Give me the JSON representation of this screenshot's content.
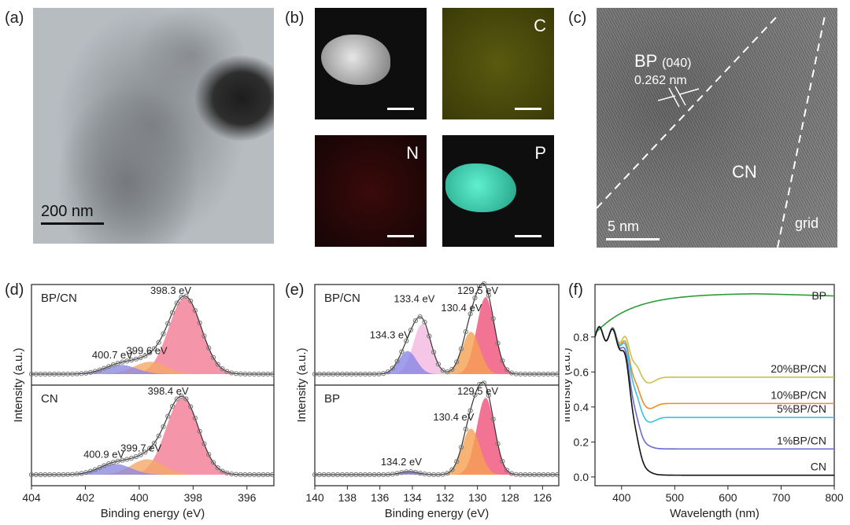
{
  "panels": {
    "a": {
      "label": "(a)",
      "scale": "200 nm"
    },
    "b": {
      "label": "(b)",
      "maps": [
        "C",
        "N",
        "P"
      ]
    },
    "c": {
      "label": "(c)",
      "bp_label": "BP",
      "plane": "(040)",
      "spacing": "0.262 nm",
      "cn": "CN",
      "grid": "grid",
      "scale": "5 nm"
    },
    "d": {
      "label": "(d)"
    },
    "e": {
      "label": "(e)"
    },
    "f": {
      "label": "(f)"
    }
  },
  "chart_data": [
    {
      "id": "d",
      "type": "line",
      "xlabel": "Binding energy (eV)",
      "ylabel": "Intensity (a.u.)",
      "xlim": [
        404,
        395
      ],
      "xticks": [
        404,
        402,
        400,
        398,
        396
      ],
      "subplots": [
        {
          "name": "BP/CN",
          "peaks": [
            {
              "label": "398.3 eV",
              "center": 398.3,
              "height": 1.0,
              "color": "#f27a95"
            },
            {
              "label": "399.6 eV",
              "center": 399.6,
              "height": 0.16,
              "color": "#f5a968"
            },
            {
              "label": "400.7 eV",
              "center": 400.7,
              "height": 0.12,
              "color": "#8e8ae0"
            }
          ]
        },
        {
          "name": "CN",
          "peaks": [
            {
              "label": "398.4 eV",
              "center": 398.4,
              "height": 1.0,
              "color": "#f27a95"
            },
            {
              "label": "399.7 eV",
              "center": 399.7,
              "height": 0.2,
              "color": "#f5a968"
            },
            {
              "label": "400.9 eV",
              "center": 400.9,
              "height": 0.14,
              "color": "#8e8ae0"
            }
          ]
        }
      ]
    },
    {
      "id": "e",
      "type": "line",
      "xlabel": "Binding energy (eV)",
      "ylabel": "Intensity (a.u.)",
      "xlim": [
        140,
        125
      ],
      "xticks": [
        140,
        138,
        136,
        134,
        132,
        130,
        128,
        126
      ],
      "subplots": [
        {
          "name": "BP/CN",
          "peaks": [
            {
              "label": "129.5 eV",
              "center": 129.5,
              "height": 1.0,
              "color": "#f0507a"
            },
            {
              "label": "130.4 eV",
              "center": 130.4,
              "height": 0.55,
              "color": "#f5a050"
            },
            {
              "label": "133.4 eV",
              "center": 133.4,
              "height": 0.65,
              "color": "#f3b8e0"
            },
            {
              "label": "134.3 eV",
              "center": 134.3,
              "height": 0.3,
              "color": "#8a86e6"
            }
          ]
        },
        {
          "name": "BP",
          "peaks": [
            {
              "label": "129.5 eV",
              "center": 129.5,
              "height": 1.0,
              "color": "#f0507a"
            },
            {
              "label": "130.4 eV",
              "center": 130.4,
              "height": 0.6,
              "color": "#f5a050"
            },
            {
              "label": "134.2 eV",
              "center": 134.2,
              "height": 0.04,
              "color": "#8a86e6"
            }
          ]
        }
      ]
    },
    {
      "id": "f",
      "type": "line",
      "xlabel": "Wavelength (nm)",
      "ylabel": "Intensity (a.u.)",
      "xlim": [
        350,
        800
      ],
      "ylim": [
        -0.05,
        1.1
      ],
      "xticks": [
        400,
        500,
        600,
        700,
        800
      ],
      "yticks": [
        0.0,
        0.2,
        0.4,
        0.6,
        0.8
      ],
      "series": [
        {
          "name": "BP",
          "color": "#2e9a3a",
          "plateau": 1.05,
          "kind": "rise"
        },
        {
          "name": "20%BP/CN",
          "color": "#c9c24a",
          "plateau": 0.57,
          "kind": "drop"
        },
        {
          "name": "10%BP/CN",
          "color": "#f08a2a",
          "plateau": 0.42,
          "kind": "drop"
        },
        {
          "name": "5%BP/CN",
          "color": "#33c4e0",
          "plateau": 0.34,
          "kind": "drop"
        },
        {
          "name": "1%BP/CN",
          "color": "#6a6ad0",
          "plateau": 0.16,
          "kind": "drop"
        },
        {
          "name": "CN",
          "color": "#111111",
          "plateau": 0.01,
          "kind": "drop"
        }
      ]
    }
  ]
}
